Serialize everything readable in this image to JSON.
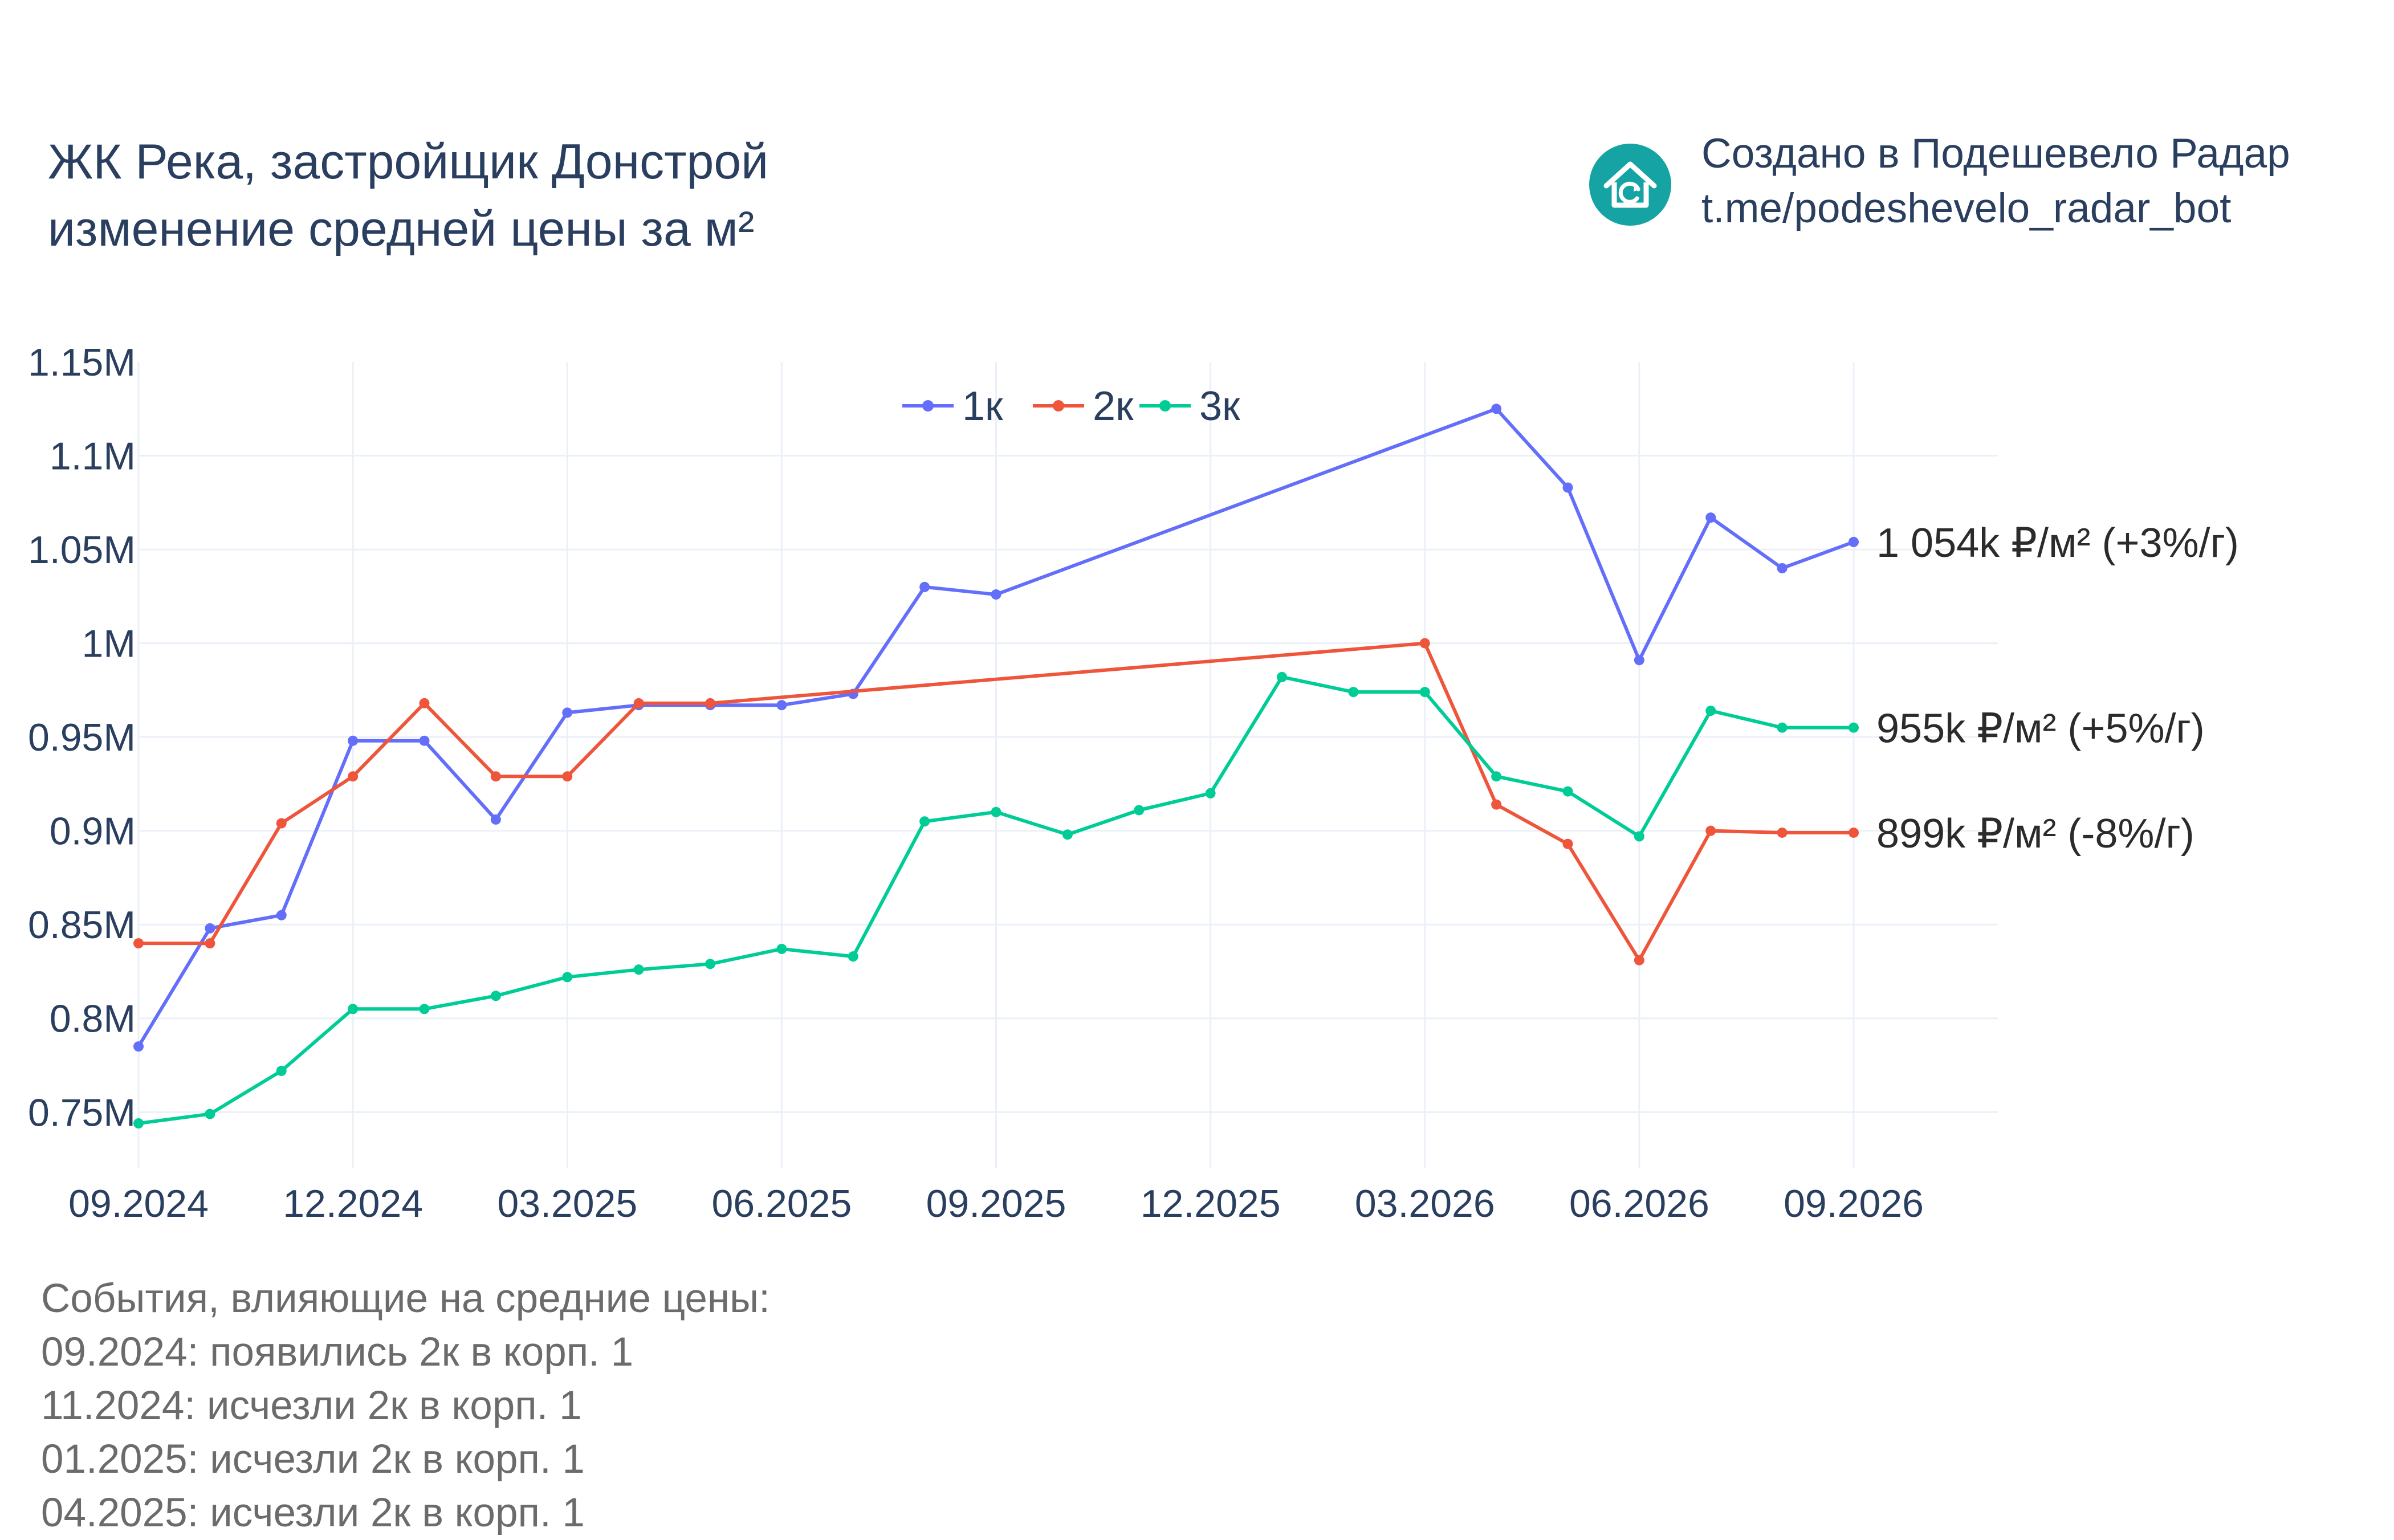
{
  "title": {
    "line1": "ЖК Река, застройщик Донстрой",
    "line2": "изменение средней цены за м²"
  },
  "brand": {
    "logo_icon": "house-refresh-icon",
    "line1": "Создано в Подешевело Радар",
    "line2": "t.me/podeshevelo_radar_bot",
    "color": "#15a3a3"
  },
  "events": {
    "heading": "События, влияющие на средние цены:",
    "items": [
      "09.2024: появились 2к в корп. 1",
      "11.2024: исчезли 2к в корп. 1",
      "01.2025: исчезли 2к в корп. 1",
      "04.2025: исчезли 2к в корп. 1"
    ]
  },
  "chart_data": {
    "type": "line",
    "x_ticks": [
      "09.2024",
      "12.2024",
      "03.2025",
      "06.2025",
      "09.2025",
      "12.2025",
      "03.2026",
      "06.2026",
      "09.2026"
    ],
    "y_ticks": [
      {
        "value": 750000,
        "label": "0.75M"
      },
      {
        "value": 800000,
        "label": "0.8M"
      },
      {
        "value": 850000,
        "label": "0.85M"
      },
      {
        "value": 900000,
        "label": "0.9M"
      },
      {
        "value": 950000,
        "label": "0.95M"
      },
      {
        "value": 1000000,
        "label": "1M"
      },
      {
        "value": 1050000,
        "label": "1.05M"
      },
      {
        "value": 1100000,
        "label": "1.1M"
      },
      {
        "value": 1150000,
        "label": "1.15M"
      }
    ],
    "ylim": [
      720000,
      1150000
    ],
    "grid": true,
    "legend_position": "top-center",
    "series": [
      {
        "name": "1к",
        "color": "#636efa",
        "end_label": "1 054k ₽/м² (+3%/г)",
        "points": [
          [
            "2024-09",
            785000
          ],
          [
            "2024-10",
            848000
          ],
          [
            "2024-11",
            855000
          ],
          [
            "2024-12",
            948000
          ],
          [
            "2025-01",
            948000
          ],
          [
            "2025-02",
            906000
          ],
          [
            "2025-03",
            963000
          ],
          [
            "2025-04",
            967000
          ],
          [
            "2025-05",
            967000
          ],
          [
            "2025-06",
            967000
          ],
          [
            "2025-07",
            973000
          ],
          [
            "2025-08",
            1030000
          ],
          [
            "2025-09",
            1026000
          ],
          [
            "2026-04",
            1125000
          ],
          [
            "2026-05",
            1083000
          ],
          [
            "2026-06",
            991000
          ],
          [
            "2026-07",
            1067000
          ],
          [
            "2026-08",
            1040000
          ],
          [
            "2026-09",
            1054000
          ]
        ]
      },
      {
        "name": "2к",
        "color": "#ef553b",
        "end_label": "899k ₽/м² (-8%/г)",
        "points": [
          [
            "2024-09",
            840000
          ],
          [
            "2024-10",
            840000
          ],
          [
            "2024-11",
            904000
          ],
          [
            "2024-12",
            929000
          ],
          [
            "2025-01",
            968000
          ],
          [
            "2025-02",
            929000
          ],
          [
            "2025-03",
            929000
          ],
          [
            "2025-04",
            968000
          ],
          [
            "2025-05",
            968000
          ],
          [
            "2026-03",
            1000000
          ],
          [
            "2026-04",
            914000
          ],
          [
            "2026-05",
            893000
          ],
          [
            "2026-06",
            831000
          ],
          [
            "2026-07",
            900000
          ],
          [
            "2026-08",
            899000
          ],
          [
            "2026-09",
            899000
          ]
        ]
      },
      {
        "name": "3к",
        "color": "#00cc96",
        "end_label": "955k ₽/м² (+5%/г)",
        "points": [
          [
            "2024-09",
            744000
          ],
          [
            "2024-10",
            749000
          ],
          [
            "2024-11",
            772000
          ],
          [
            "2024-12",
            805000
          ],
          [
            "2025-01",
            805000
          ],
          [
            "2025-02",
            812000
          ],
          [
            "2025-03",
            822000
          ],
          [
            "2025-04",
            826000
          ],
          [
            "2025-05",
            829000
          ],
          [
            "2025-06",
            837000
          ],
          [
            "2025-07",
            833000
          ],
          [
            "2025-08",
            905000
          ],
          [
            "2025-09",
            910000
          ],
          [
            "2025-10",
            898000
          ],
          [
            "2025-11",
            911000
          ],
          [
            "2025-12",
            920000
          ],
          [
            "2026-01",
            982000
          ],
          [
            "2026-02",
            974000
          ],
          [
            "2026-03",
            974000
          ],
          [
            "2026-04",
            929000
          ],
          [
            "2026-05",
            921000
          ],
          [
            "2026-06",
            897000
          ],
          [
            "2026-07",
            964000
          ],
          [
            "2026-08",
            955000
          ],
          [
            "2026-09",
            955000
          ]
        ]
      }
    ]
  }
}
